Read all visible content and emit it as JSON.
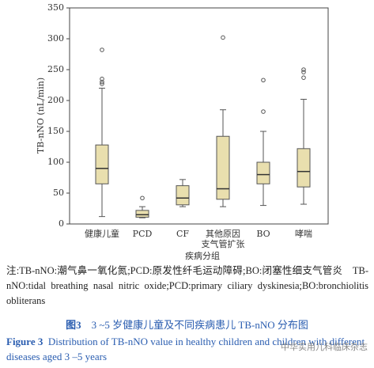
{
  "chart_data": {
    "type": "box",
    "x_label": "疾病分组",
    "y_label": "TB-nNO (nL/min)",
    "categories": [
      "健康儿童",
      "PCD",
      "CF",
      "其他原因\n支气管扩张",
      "BO",
      "哮喘"
    ],
    "boxes": [
      {
        "min": 12,
        "q1": 65,
        "median": 90,
        "q3": 128,
        "max": 220,
        "outliers": [
          227,
          230,
          235,
          282
        ]
      },
      {
        "min": 10,
        "q1": 11,
        "median": 15,
        "q3": 22,
        "max": 28,
        "outliers": [
          42
        ]
      },
      {
        "min": 28,
        "q1": 31,
        "median": 42,
        "q3": 62,
        "max": 72,
        "outliers": []
      },
      {
        "min": 28,
        "q1": 40,
        "median": 57,
        "q3": 142,
        "max": 185,
        "outliers": [
          302
        ]
      },
      {
        "min": 30,
        "q1": 65,
        "median": 80,
        "q3": 100,
        "max": 150,
        "outliers": [
          182,
          233
        ]
      },
      {
        "min": 32,
        "q1": 60,
        "median": 85,
        "q3": 122,
        "max": 202,
        "outliers": [
          237,
          246,
          250
        ]
      }
    ],
    "color": "#e9dfae",
    "ylim": [
      0,
      350
    ],
    "yticks": [
      0,
      50,
      100,
      150,
      200,
      250,
      300,
      350
    ]
  },
  "note": "注:TB-nNO:潮气鼻一氧化氮;PCD:原发性纤毛运动障碍;BO:闭塞性细支气管炎　TB-nNO:tidal breathing nasal nitric oxide;PCD:primary ciliary dyskinesia;BO:bronchiolitis obliterans",
  "figure_label_cn": "图3",
  "caption_cn": "3 ~5 岁健康儿童及不同疾病患儿 TB-nNO 分布图",
  "figure_label_en": "Figure 3",
  "caption_en": "Distribution of TB-nNO value in healthy children and children with different diseases aged 3 –5 years",
  "watermark": "中华实用儿科临床杂志"
}
